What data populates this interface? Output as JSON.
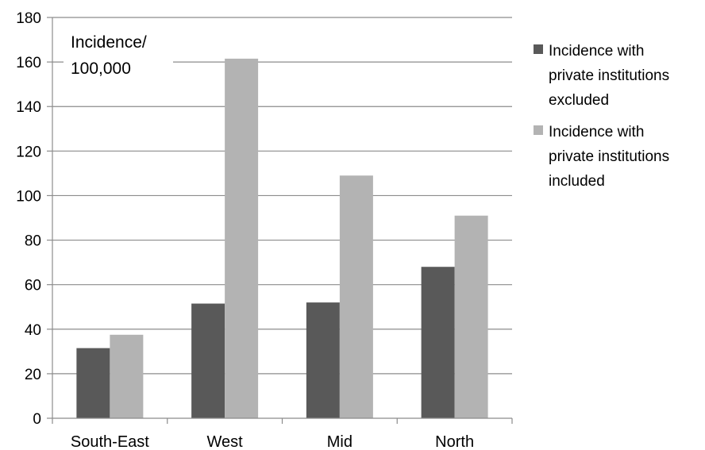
{
  "chart_data": {
    "type": "bar",
    "categories": [
      "South-East",
      "West",
      "Mid",
      "North"
    ],
    "series": [
      {
        "name": "Incidence with private institutions excluded",
        "name_lines": [
          "Incidence with",
          "private institutions",
          "excluded"
        ],
        "color": "#595959",
        "values": [
          31.5,
          51.5,
          52,
          68
        ]
      },
      {
        "name": "Incidence with private institutions included",
        "name_lines": [
          "Incidence with",
          "private institutions",
          "included"
        ],
        "color": "#b3b3b3",
        "values": [
          37.5,
          161.5,
          109,
          91
        ]
      }
    ],
    "ylabel": "Incidence/ 100,000",
    "ylabel_lines": [
      "Incidence/",
      "100,000"
    ],
    "xlabel": "",
    "ylim": [
      0,
      180
    ],
    "yticks": [
      0,
      20,
      40,
      60,
      80,
      100,
      120,
      140,
      160,
      180
    ],
    "grid": true,
    "legend_position": "right"
  }
}
